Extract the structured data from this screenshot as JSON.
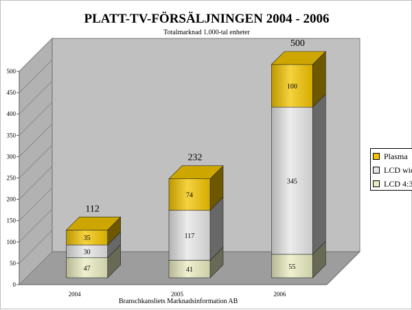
{
  "chart_data": {
    "type": "bar",
    "stacked": true,
    "three_d": true,
    "title": "PLATT-TV-FÖRSÄLJNINGEN 2004 - 2006",
    "subtitle": "Totalmarknad 1.000-tal enheter",
    "source_note": "Branschkansliets Marknadsinformation AB",
    "categories": [
      "2004",
      "2005",
      "2006"
    ],
    "series": [
      {
        "name": "LCD 4:3",
        "values": [
          47,
          41,
          55
        ],
        "color": "#e8ebbf"
      },
      {
        "name": "LCD wide",
        "values": [
          30,
          117,
          345
        ],
        "color": "#e6e6e6"
      },
      {
        "name": "Plasma",
        "values": [
          35,
          74,
          100
        ],
        "color": "#f2c300"
      }
    ],
    "totals": [
      112,
      232,
      500
    ],
    "ylim": [
      0,
      500
    ],
    "yticks": [
      0,
      50,
      100,
      150,
      200,
      250,
      300,
      350,
      400,
      450,
      500
    ],
    "grid": false,
    "legend_position": "right",
    "wall_color": "#c0c0c0"
  },
  "legend": {
    "items": [
      {
        "label": "Plasma",
        "color": "#f2c300"
      },
      {
        "label": "LCD wid",
        "color": "#e6e6e6"
      },
      {
        "label": "LCD 4:3",
        "color": "#e8ebbf"
      }
    ]
  }
}
